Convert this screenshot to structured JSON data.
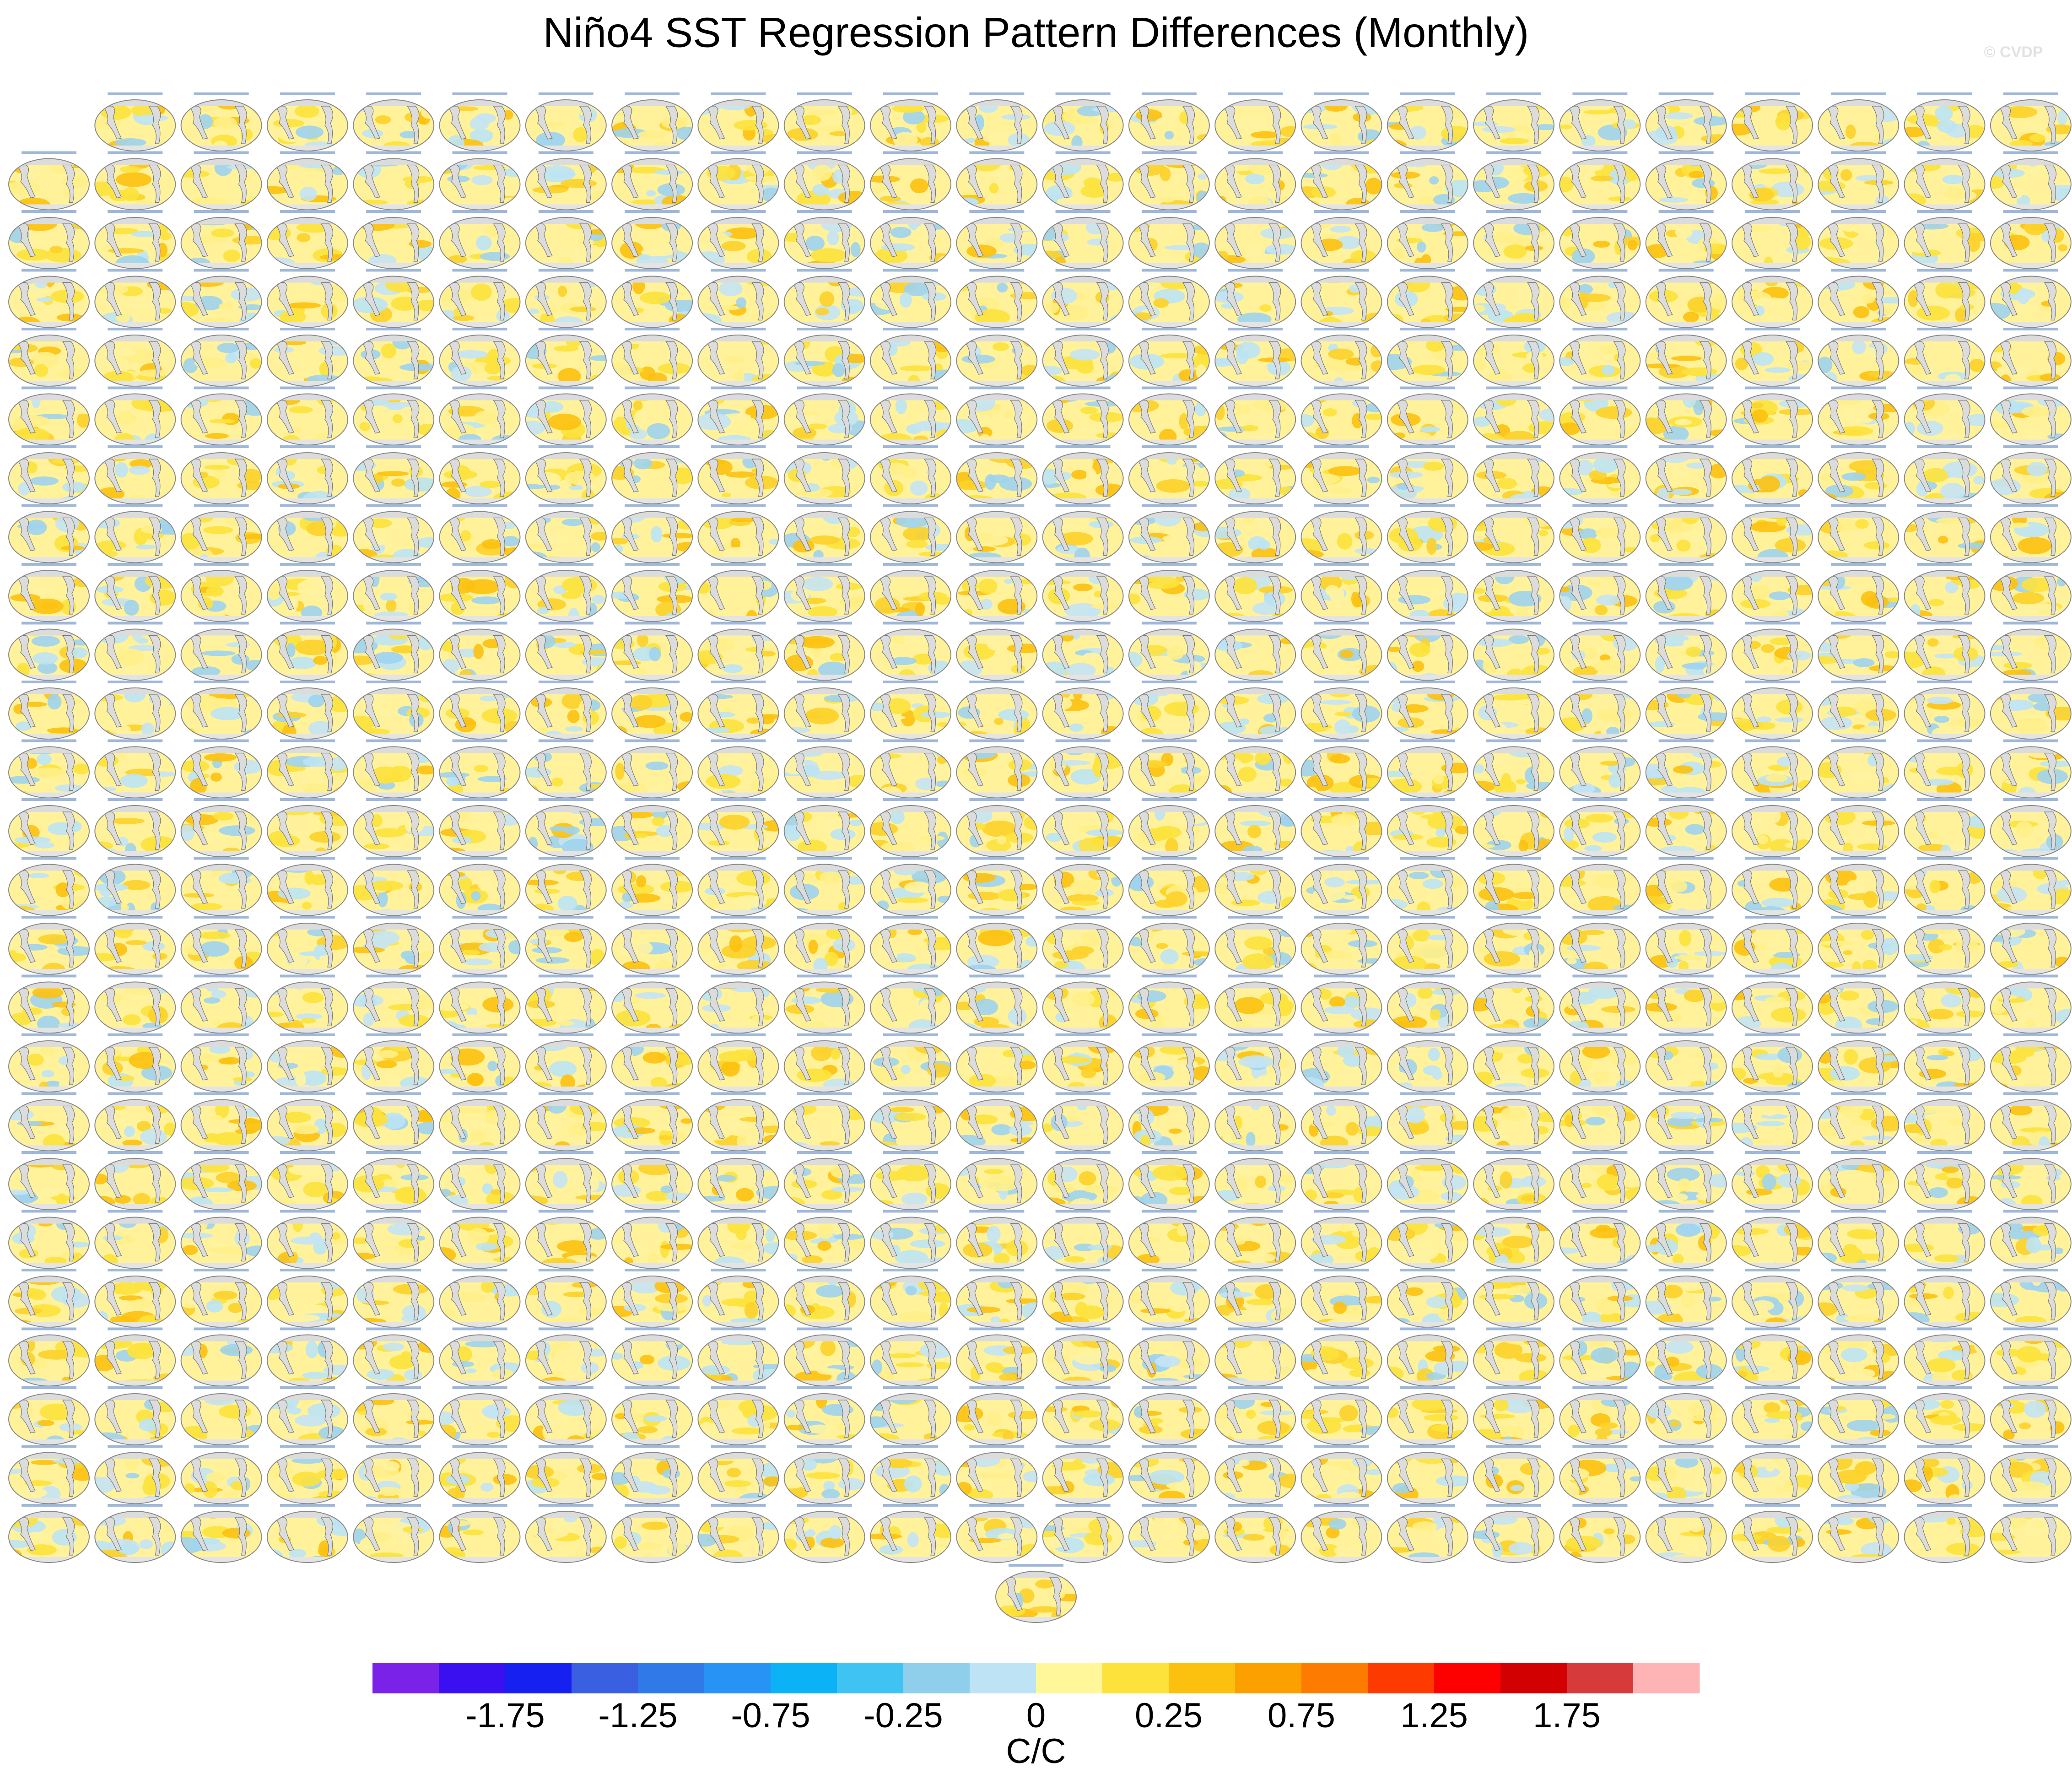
{
  "chart_data": {
    "type": "colorbar",
    "title": "Niño4 SST Regression Pattern Differences (Monthly)",
    "copyright": "© CVDP",
    "colors": [
      "#7b22e8",
      "#3a0ff0",
      "#1620f0",
      "#3a5fe0",
      "#2f7ae8",
      "#2793f5",
      "#0bb2f6",
      "#3fc3f2",
      "#8fcfec",
      "#bde3f5",
      "#fff79a",
      "#fde23c",
      "#fcc10f",
      "#fca000",
      "#fd7b00",
      "#fd3a00",
      "#fd0000",
      "#d20000",
      "#d63a3a",
      "#feb4b4"
    ],
    "ticks": [
      -1.75,
      -1.25,
      -0.75,
      -0.25,
      0,
      0.25,
      0.75,
      1.25,
      1.75
    ],
    "label": "C/C"
  }
}
